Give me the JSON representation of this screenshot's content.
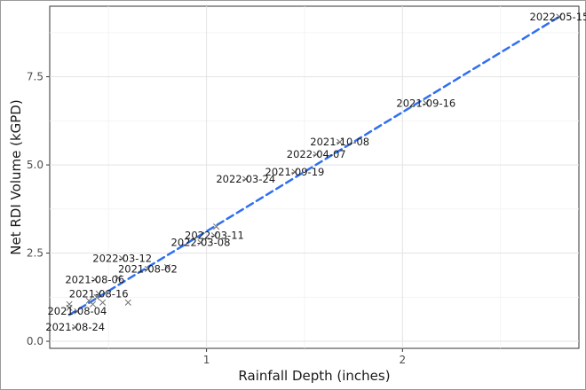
{
  "chart_data": {
    "type": "scatter",
    "xlabel": "Rainfall Depth (inches)",
    "ylabel": "Net RDI Volume (kGPD)",
    "xlim": [
      0.2,
      2.9
    ],
    "ylim": [
      -0.2,
      9.5
    ],
    "x_ticks": [
      1,
      2
    ],
    "y_ticks": [
      0.0,
      2.5,
      5.0,
      7.5
    ],
    "x_tick_labels": [
      "1",
      "2"
    ],
    "y_tick_labels": [
      "0.0",
      "2.5",
      "5.0",
      "7.5"
    ],
    "grid": true,
    "marker": "x",
    "marker_color": "#6e6e6e",
    "trendline": {
      "style": "dashed",
      "color": "#2f6ff0",
      "x": [
        0.3,
        2.8
      ],
      "y": [
        0.75,
        9.2
      ]
    },
    "labeled_points": [
      {
        "label": "2022-05-15",
        "x": 2.8,
        "y": 9.2
      },
      {
        "label": "2021-09-16",
        "x": 2.12,
        "y": 6.75
      },
      {
        "label": "2021-10-08",
        "x": 1.68,
        "y": 5.65
      },
      {
        "label": "2022-04-07",
        "x": 1.56,
        "y": 5.3
      },
      {
        "label": "2021-09-19",
        "x": 1.45,
        "y": 4.8
      },
      {
        "label": "2022-03-24",
        "x": 1.2,
        "y": 4.6
      },
      {
        "label": "2022-03-11",
        "x": 1.04,
        "y": 3.0
      },
      {
        "label": "2022-03-08",
        "x": 0.97,
        "y": 2.8
      },
      {
        "label": "2022-03-12",
        "x": 0.57,
        "y": 2.35
      },
      {
        "label": "2021-08-02",
        "x": 0.7,
        "y": 2.05
      },
      {
        "label": "2021-08-06",
        "x": 0.43,
        "y": 1.75
      },
      {
        "label": "2021-08-16",
        "x": 0.45,
        "y": 1.35
      },
      {
        "label": "2021-08-04",
        "x": 0.34,
        "y": 0.85
      },
      {
        "label": "2021-08-24",
        "x": 0.33,
        "y": 0.4
      }
    ],
    "unlabeled_points": [
      {
        "x": 0.3,
        "y": 1.05
      },
      {
        "x": 0.3,
        "y": 0.95
      },
      {
        "x": 0.4,
        "y": 1.15
      },
      {
        "x": 0.42,
        "y": 1.05
      },
      {
        "x": 0.44,
        "y": 1.25
      },
      {
        "x": 0.47,
        "y": 1.1
      },
      {
        "x": 0.6,
        "y": 1.1
      },
      {
        "x": 0.55,
        "y": 1.8
      },
      {
        "x": 0.8,
        "y": 2.1
      },
      {
        "x": 1.05,
        "y": 3.25
      }
    ]
  }
}
